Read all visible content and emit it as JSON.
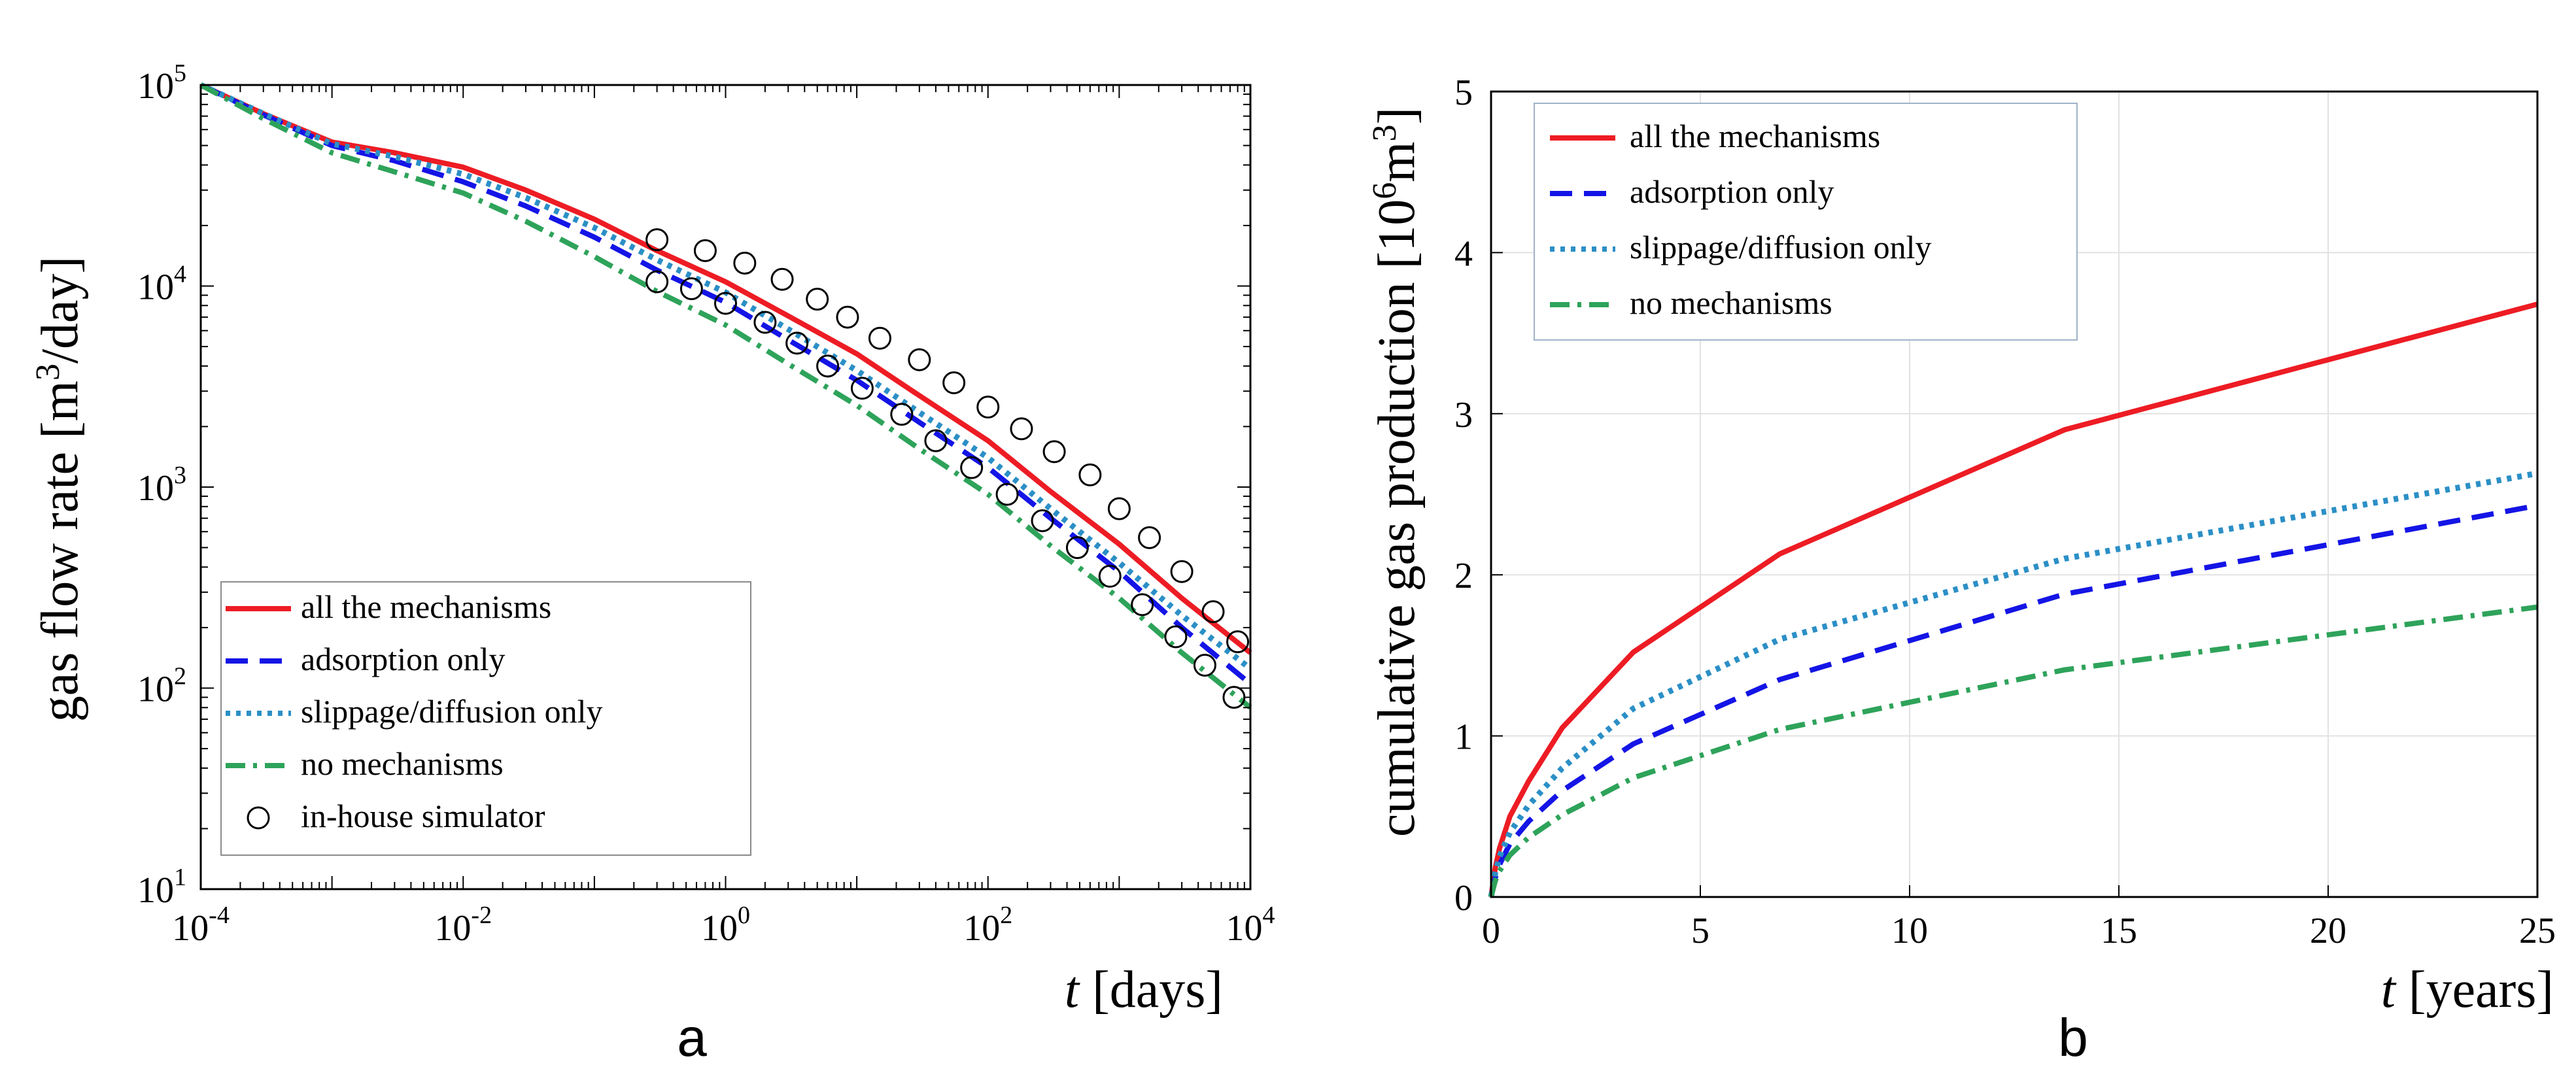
{
  "panels": {
    "a": {
      "label": "a"
    },
    "b": {
      "label": "b"
    }
  },
  "colors": {
    "all": "#ed1c24",
    "adsorption": "#1414e6",
    "slippage": "#2b8fc6",
    "none": "#2ea35a",
    "simulator": "#000000"
  },
  "chart_data": [
    {
      "type": "line",
      "panel": "a",
      "x_scale": "log",
      "y_scale": "log",
      "xlim": [
        0.0001,
        10000
      ],
      "ylim": [
        10,
        100000
      ],
      "x_ticks": [
        {
          "v": 0.0001,
          "base": "10",
          "exp": "-4"
        },
        {
          "v": 0.01,
          "base": "10",
          "exp": "-2"
        },
        {
          "v": 1,
          "base": "10",
          "exp": "0"
        },
        {
          "v": 100,
          "base": "10",
          "exp": "2"
        },
        {
          "v": 10000,
          "base": "10",
          "exp": "4"
        }
      ],
      "y_ticks": [
        {
          "v": 10,
          "base": "10",
          "exp": "1"
        },
        {
          "v": 100,
          "base": "10",
          "exp": "2"
        },
        {
          "v": 1000,
          "base": "10",
          "exp": "3"
        },
        {
          "v": 10000,
          "base": "10",
          "exp": "4"
        },
        {
          "v": 100000,
          "base": "10",
          "exp": "5"
        }
      ],
      "xlabel": {
        "var": "t",
        "rest": " [days]"
      },
      "ylabel": {
        "pre": "gas flow rate [m",
        "sup": "3",
        "post": "/day]"
      },
      "grid": false,
      "legend_position": "bottom-left",
      "series": [
        {
          "key": "all",
          "name": "all the mechanisms",
          "style": "solid",
          "x": [
            0.0001,
            0.0003,
            0.001,
            0.003,
            0.01,
            0.03,
            0.1,
            0.3,
            1,
            3,
            10,
            30,
            100,
            300,
            1000,
            3000,
            10000
          ],
          "y": [
            100000,
            72000,
            52000,
            46000,
            39000,
            30000,
            21500,
            15000,
            10500,
            7100,
            4600,
            2850,
            1700,
            950,
            520,
            280,
            150
          ]
        },
        {
          "key": "adsorption",
          "name": "adsorption only",
          "style": "dashed",
          "x": [
            0.0001,
            0.0003,
            0.001,
            0.003,
            0.01,
            0.03,
            0.1,
            0.3,
            1,
            3,
            10,
            30,
            100,
            300,
            1000,
            3000,
            10000
          ],
          "y": [
            100000,
            71000,
            50000,
            42000,
            33000,
            25000,
            17500,
            12000,
            8300,
            5400,
            3400,
            2100,
            1250,
            700,
            380,
            200,
            105
          ]
        },
        {
          "key": "slippage",
          "name": "slippage/diffusion only",
          "style": "dotted",
          "x": [
            0.0001,
            0.0003,
            0.001,
            0.003,
            0.01,
            0.03,
            0.1,
            0.3,
            1,
            3,
            10,
            30,
            100,
            300,
            1000,
            3000,
            10000
          ],
          "y": [
            100000,
            72000,
            51000,
            44000,
            36000,
            27500,
            19500,
            13500,
            9300,
            6100,
            3800,
            2350,
            1400,
            780,
            420,
            230,
            125
          ]
        },
        {
          "key": "none",
          "name": "no mechanisms",
          "style": "dashdot",
          "x": [
            0.0001,
            0.0003,
            0.001,
            0.003,
            0.01,
            0.03,
            0.1,
            0.3,
            1,
            3,
            10,
            30,
            100,
            300,
            1000,
            3000,
            10000
          ],
          "y": [
            100000,
            68000,
            46000,
            37000,
            29000,
            21000,
            14000,
            9400,
            6400,
            4100,
            2550,
            1550,
            920,
            510,
            280,
            150,
            80
          ]
        },
        {
          "key": "simulator",
          "name": "in-house simulator",
          "style": "markers",
          "x": [
            0.3,
            0.7,
            1.4,
            2.7,
            5,
            8.5,
            15,
            30,
            55,
            100,
            180,
            320,
            600,
            1000,
            1700,
            3000,
            5200,
            8000,
            0.3,
            0.55,
            1,
            2,
            3.5,
            6,
            11,
            22,
            40,
            75,
            140,
            260,
            480,
            850,
            1500,
            2700,
            4500,
            7500
          ],
          "y": [
            17000,
            15000,
            13000,
            10800,
            8600,
            7000,
            5500,
            4300,
            3300,
            2500,
            1950,
            1500,
            1150,
            780,
            560,
            380,
            240,
            170,
            10500,
            9700,
            8200,
            6600,
            5200,
            4000,
            3100,
            2300,
            1700,
            1250,
            920,
            680,
            500,
            360,
            260,
            180,
            130,
            90
          ]
        }
      ]
    },
    {
      "type": "line",
      "panel": "b",
      "x_scale": "linear",
      "y_scale": "linear",
      "xlim": [
        0,
        25
      ],
      "ylim": [
        0,
        5
      ],
      "x_ticks": [
        0,
        5,
        10,
        15,
        20,
        25
      ],
      "y_ticks": [
        0,
        1,
        2,
        3,
        4,
        5
      ],
      "xlabel": {
        "var": "t",
        "rest": " [years]"
      },
      "ylabel": {
        "pre": "cumulative gas production [10",
        "sup": "6",
        "mid": "m",
        "sup2": "3",
        "post": "]"
      },
      "grid": true,
      "legend_position": "top-left",
      "series": [
        {
          "key": "all",
          "name": "all the mechanisms",
          "style": "solid",
          "x": [
            0,
            0.1,
            0.2,
            0.45,
            0.9,
            1.7,
            3.4,
            6.9,
            13.7,
            25
          ],
          "y": [
            0,
            0.18,
            0.3,
            0.5,
            0.72,
            1.05,
            1.52,
            2.13,
            2.9,
            3.68
          ]
        },
        {
          "key": "adsorption",
          "name": "adsorption only",
          "style": "dashed",
          "x": [
            0,
            0.1,
            0.2,
            0.45,
            0.9,
            1.7,
            3.4,
            6.9,
            13.7,
            25
          ],
          "y": [
            0,
            0.12,
            0.2,
            0.33,
            0.47,
            0.66,
            0.95,
            1.35,
            1.88,
            2.43
          ]
        },
        {
          "key": "slippage",
          "name": "slippage/diffusion only",
          "style": "dotted",
          "x": [
            0,
            0.1,
            0.2,
            0.45,
            0.9,
            1.7,
            3.4,
            6.9,
            13.7,
            25
          ],
          "y": [
            0,
            0.15,
            0.25,
            0.4,
            0.57,
            0.8,
            1.17,
            1.6,
            2.1,
            2.63
          ]
        },
        {
          "key": "none",
          "name": "no mechanisms",
          "style": "dashdot",
          "x": [
            0,
            0.1,
            0.2,
            0.45,
            0.9,
            1.7,
            3.4,
            6.9,
            13.7,
            25
          ],
          "y": [
            0,
            0.1,
            0.16,
            0.26,
            0.37,
            0.51,
            0.74,
            1.04,
            1.41,
            1.8
          ]
        }
      ]
    }
  ]
}
